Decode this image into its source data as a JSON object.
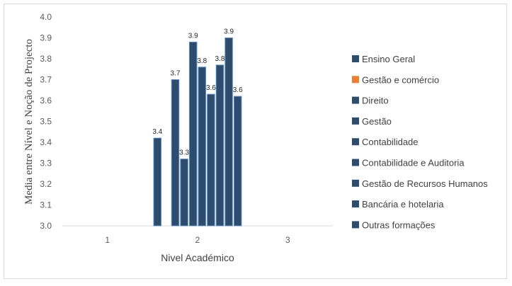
{
  "chart_data": {
    "type": "bar",
    "xlabel": "Nivel Académico",
    "ylabel": "Media entre Nível e Noção de Projecto",
    "categories": [
      "1",
      "2",
      "3"
    ],
    "ylim": [
      3.0,
      4.0
    ],
    "yticks": [
      "3.0",
      "3.1",
      "3.2",
      "3.3",
      "3.4",
      "3.5",
      "3.6",
      "3.7",
      "3.8",
      "3.9",
      "4.0"
    ],
    "grid": false,
    "legend_position": "right",
    "series": [
      {
        "name": "Ensino Geral",
        "color": "#2e4c6d",
        "values": [
          null,
          3.42,
          null
        ],
        "labels": [
          "",
          "3.4",
          ""
        ]
      },
      {
        "name": "Gestão e comércio",
        "color": "#ed7d31",
        "values": [
          null,
          null,
          null
        ],
        "labels": [
          "",
          "",
          ""
        ]
      },
      {
        "name": "Direito",
        "color": "#2e4c6d",
        "values": [
          null,
          3.7,
          null
        ],
        "labels": [
          "",
          "3.7",
          ""
        ]
      },
      {
        "name": "Gestão",
        "color": "#2e4c6d",
        "values": [
          null,
          3.32,
          null
        ],
        "labels": [
          "",
          "3.3",
          ""
        ]
      },
      {
        "name": "Contabilidade",
        "color": "#2e4c6d",
        "values": [
          null,
          3.88,
          null
        ],
        "labels": [
          "",
          "3.9",
          ""
        ]
      },
      {
        "name": "Contabilidade e Auditoria",
        "color": "#2e4c6d",
        "values": [
          null,
          3.76,
          null
        ],
        "labels": [
          "",
          "3.8",
          ""
        ]
      },
      {
        "name": "Gestão de Recursos Humanos",
        "color": "#2e4c6d",
        "values": [
          null,
          3.63,
          null
        ],
        "labels": [
          "",
          "3.6",
          ""
        ]
      },
      {
        "name": "Bancária e hotelaria",
        "color": "#2e4c6d",
        "values": [
          null,
          3.77,
          null
        ],
        "labels": [
          "",
          "3.8",
          ""
        ]
      },
      {
        "name": "Outras formações",
        "color": "#2e4c6d",
        "values": [
          null,
          3.9,
          null
        ],
        "labels": [
          "",
          "3.9",
          ""
        ]
      }
    ],
    "extra_bar": {
      "values": [
        null,
        3.62,
        null
      ],
      "labels": [
        "",
        "3.6",
        ""
      ],
      "color": "#2e4c6d"
    }
  }
}
